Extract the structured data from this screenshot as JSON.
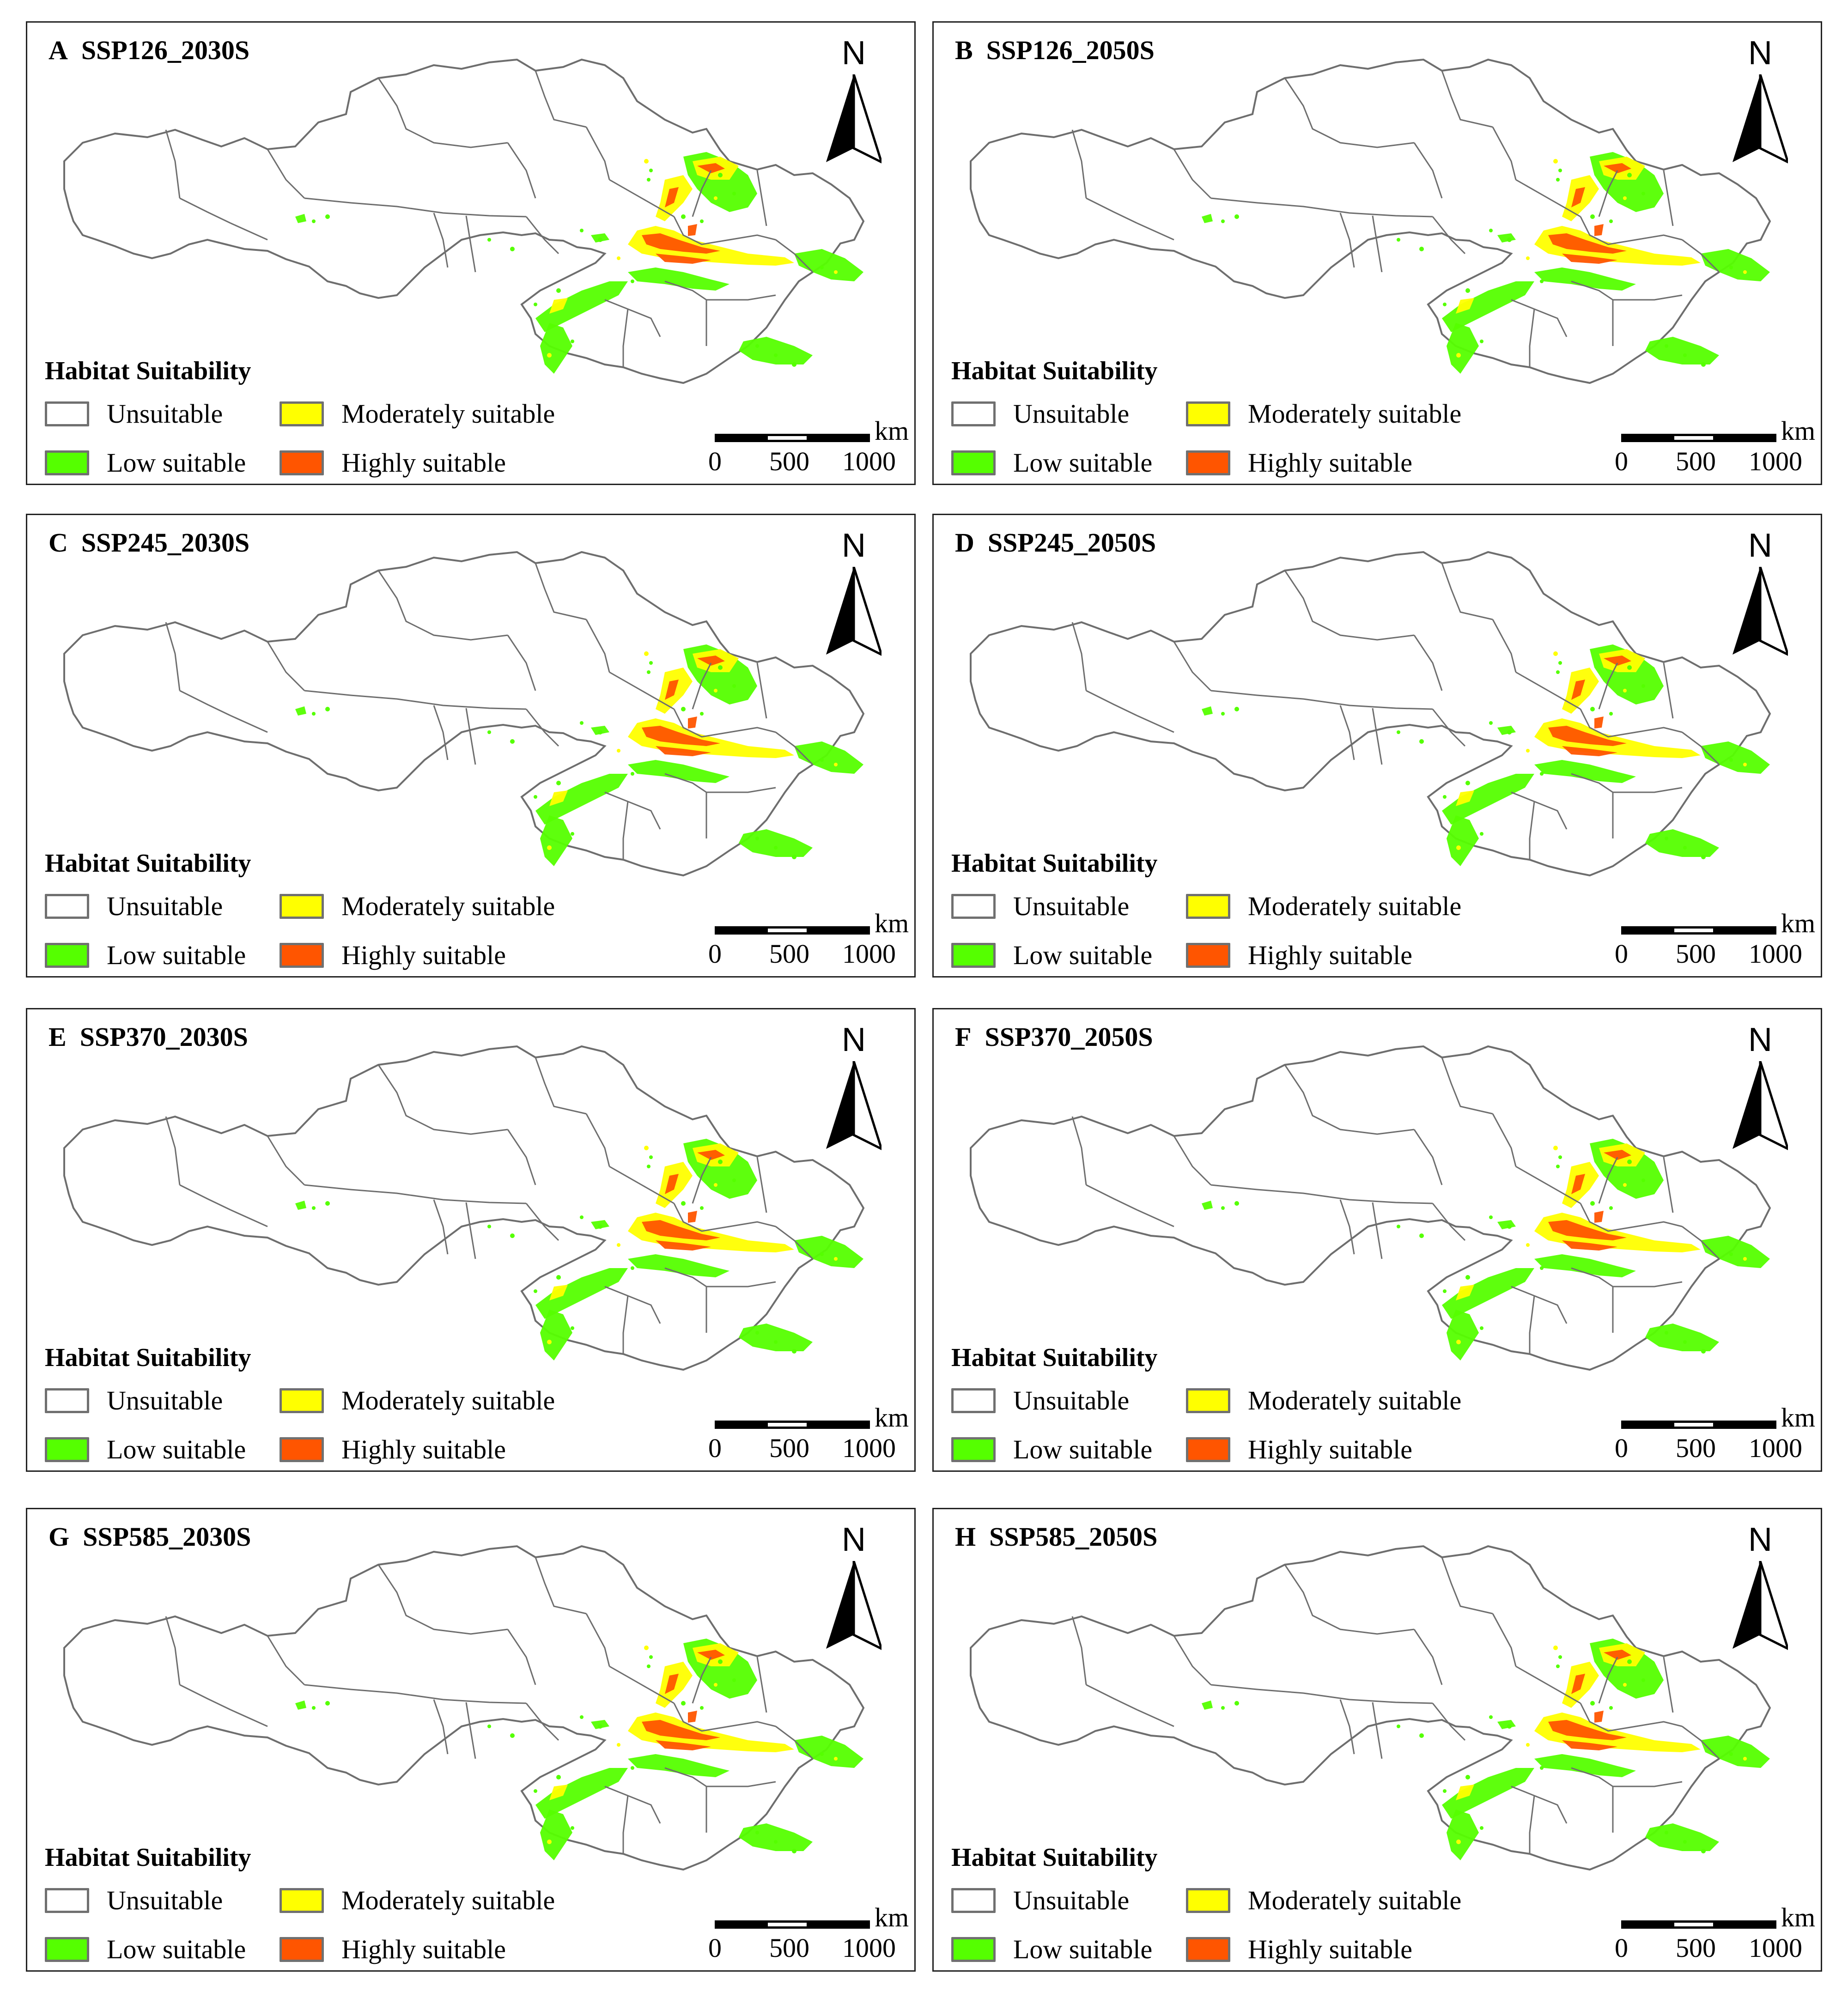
{
  "panels": [
    {
      "letter": "A",
      "scenario": "SSP126_2030S"
    },
    {
      "letter": "B",
      "scenario": "SSP126_2050S"
    },
    {
      "letter": "C",
      "scenario": "SSP245_2030S"
    },
    {
      "letter": "D",
      "scenario": "SSP245_2050S"
    },
    {
      "letter": "E",
      "scenario": "SSP370_2030S"
    },
    {
      "letter": "F",
      "scenario": "SSP370_2050S"
    },
    {
      "letter": "G",
      "scenario": "SSP585_2030S"
    },
    {
      "letter": "H",
      "scenario": "SSP585_2050S"
    }
  ],
  "north_label": "N",
  "legend": {
    "title": "Habitat Suitability",
    "items": [
      {
        "label": "Unsuitable",
        "color": "#ffffff"
      },
      {
        "label": "Moderately suitable",
        "color": "#ffff00"
      },
      {
        "label": "Low suitable",
        "color": "#55ff00"
      },
      {
        "label": "Highly suitable",
        "color": "#ff5500"
      }
    ]
  },
  "scale": {
    "unit": "km",
    "ticks": [
      "0",
      "500",
      "1000"
    ]
  },
  "colors": {
    "boundary": "#6e6e6e",
    "panel_border": "#222222",
    "low": "#55ff00",
    "moderate": "#ffff00",
    "high": "#ff5500"
  }
}
